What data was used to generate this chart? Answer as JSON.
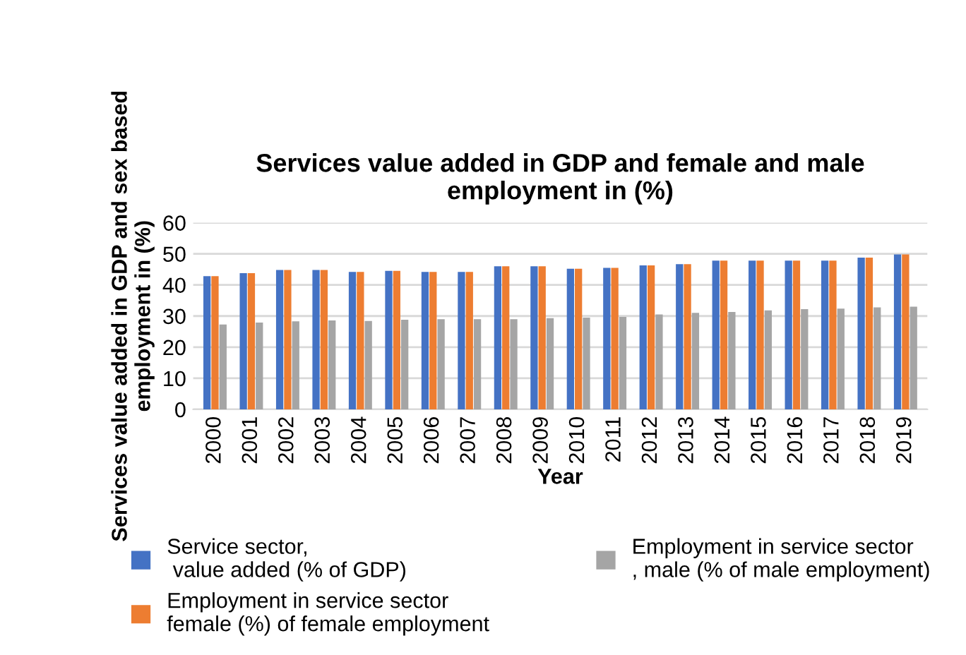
{
  "chart_data": {
    "type": "bar",
    "title": "Services value added in GDP and female and male\nemployment in (%)",
    "xlabel": "Year",
    "ylabel": "Services value added in GDP and sex based\nemployment in (%)",
    "categories": [
      "2000",
      "2001",
      "2002",
      "2003",
      "2004",
      "2005",
      "2006",
      "2007",
      "2008",
      "2009",
      "2010",
      "2011",
      "2012",
      "2013",
      "2014",
      "2015",
      "2016",
      "2017",
      "2018",
      "2019"
    ],
    "series": [
      {
        "name": "Service sector,\n value added (% of GDP)",
        "color": "#4472c4",
        "values": [
          42.8,
          43.8,
          44.8,
          44.8,
          44.2,
          44.5,
          44.2,
          44.2,
          46.0,
          46.0,
          45.2,
          45.5,
          46.3,
          46.7,
          47.8,
          47.8,
          47.8,
          47.8,
          48.8,
          49.8
        ]
      },
      {
        "name": "Employment in service sector\nfemale (%) of female employment",
        "color": "#ed7d31",
        "values": [
          42.8,
          43.8,
          44.8,
          44.8,
          44.2,
          44.5,
          44.2,
          44.2,
          46.0,
          46.0,
          45.2,
          45.5,
          46.3,
          46.7,
          47.8,
          47.8,
          47.8,
          47.8,
          48.8,
          49.8
        ]
      },
      {
        "name": "Employment in service sector\n, male (% of male employment)",
        "color": "#a5a5a5",
        "values": [
          27.3,
          27.9,
          28.3,
          28.6,
          28.4,
          28.8,
          29.0,
          29.0,
          29.0,
          29.3,
          29.5,
          29.7,
          30.5,
          31.0,
          31.3,
          31.8,
          32.2,
          32.4,
          32.8,
          33.0
        ]
      }
    ],
    "ylim": [
      0,
      60
    ],
    "yticks": [
      0,
      10,
      20,
      30,
      40,
      50,
      60
    ],
    "grid": "y",
    "legend": "bottom"
  }
}
